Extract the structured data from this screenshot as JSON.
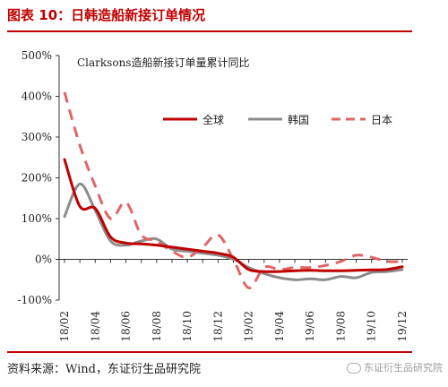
{
  "header": {
    "title": "图表 10：日韩造船新接订单情况"
  },
  "footer": {
    "source": "资料来源：Wind，东证衍生品研究院",
    "watermark": "东证衍生品研究院"
  },
  "chart_data": {
    "type": "line",
    "title": "Clarksons造船新接订单量累计同比",
    "xlabel": "",
    "ylabel": "",
    "ylim": [
      -100,
      500
    ],
    "yticks": [
      "-100%",
      "0%",
      "100%",
      "200%",
      "300%",
      "400%",
      "500%"
    ],
    "ytick_values": [
      -100,
      0,
      100,
      200,
      300,
      400,
      500
    ],
    "xticks": [
      "18/02",
      "18/04",
      "18/06",
      "18/08",
      "18/10",
      "18/12",
      "19/02",
      "19/04",
      "19/06",
      "19/08",
      "19/10",
      "19/12"
    ],
    "x": [
      "18/02",
      "18/03",
      "18/04",
      "18/05",
      "18/06",
      "18/07",
      "18/08",
      "18/09",
      "18/10",
      "18/11",
      "18/12",
      "19/01",
      "19/02",
      "19/03",
      "19/04",
      "19/05",
      "19/06",
      "19/07",
      "19/08",
      "19/09",
      "19/10",
      "19/11",
      "19/12"
    ],
    "legend_position": "top-right",
    "grid": false,
    "series": [
      {
        "name": "全球",
        "color": "#c00000",
        "dash": "solid",
        "values": [
          245,
          130,
          125,
          55,
          40,
          38,
          35,
          30,
          25,
          20,
          15,
          5,
          -25,
          -30,
          -30,
          -28,
          -27,
          -28,
          -28,
          -27,
          -26,
          -25,
          -18
        ]
      },
      {
        "name": "韩国",
        "color": "#8c8c8c",
        "dash": "solid",
        "values": [
          105,
          185,
          120,
          45,
          35,
          45,
          50,
          25,
          20,
          15,
          10,
          0,
          -20,
          -35,
          -45,
          -50,
          -48,
          -50,
          -42,
          -45,
          -32,
          -30,
          -25
        ]
      },
      {
        "name": "日本",
        "color": "#e06666",
        "dash": "dashed",
        "values": [
          410,
          280,
          180,
          100,
          140,
          60,
          45,
          20,
          5,
          30,
          60,
          0,
          -70,
          -20,
          -25,
          -20,
          -20,
          -15,
          -5,
          10,
          5,
          -5,
          -5
        ]
      }
    ]
  }
}
